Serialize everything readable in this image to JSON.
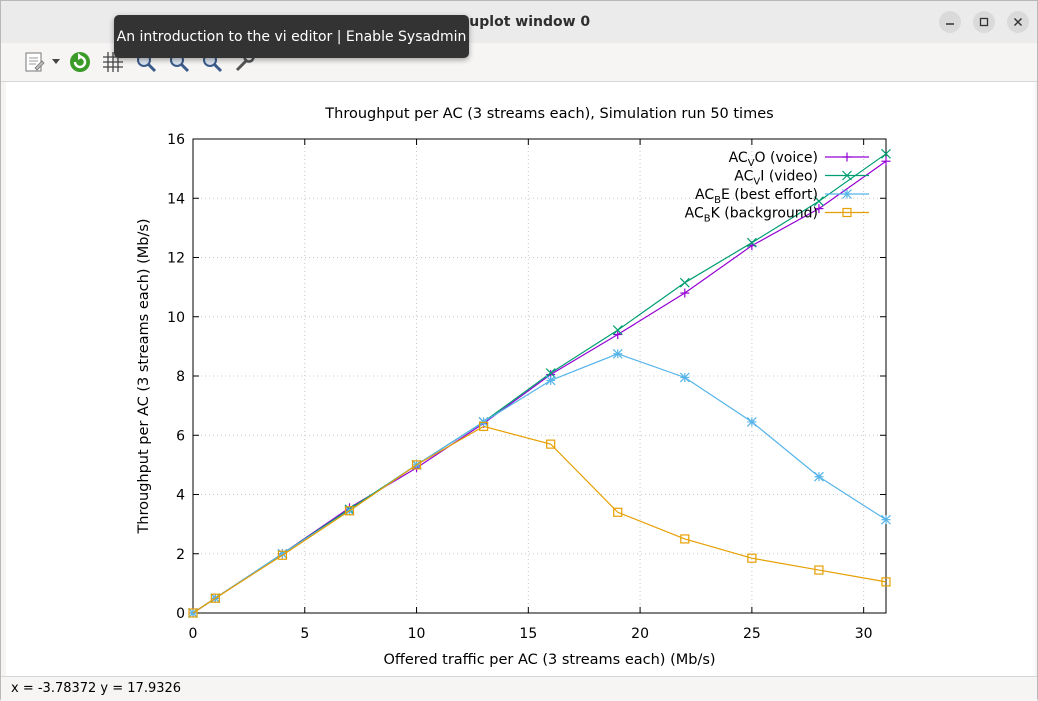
{
  "window": {
    "title": "Gnuplot window 0"
  },
  "tooltip": {
    "text": "An introduction to the vi editor | Enable Sysadmin"
  },
  "toolbar": {
    "icons": [
      "copy-icon",
      "dropdown-arrow-icon",
      "replot-icon",
      "grid-icon",
      "zoom-prev-icon",
      "zoom-next-icon",
      "autoscale-icon",
      "config-icon"
    ]
  },
  "status": {
    "text": "x = -3.78372 y = 17.9326"
  },
  "chart_data": {
    "type": "line",
    "title": "Throughput per AC (3 streams each), Simulation run 50 times",
    "xlabel": "Offered traffic per AC (3 streams each) (Mb/s)",
    "ylabel": "Throughput per AC (3 streams each) (Mb/s)",
    "xlim": [
      0,
      31
    ],
    "ylim": [
      0,
      16
    ],
    "xticks": [
      0,
      5,
      10,
      15,
      20,
      25,
      30
    ],
    "yticks": [
      0,
      2,
      4,
      6,
      8,
      10,
      12,
      14,
      16
    ],
    "grid": true,
    "legend_position": "top-right",
    "x": [
      0,
      1,
      4,
      7,
      10,
      13,
      16,
      19,
      22,
      25,
      28,
      31
    ],
    "series": [
      {
        "name": "AC_VO (voice)",
        "label_main": "AC",
        "label_sub": "V",
        "label_rest": "O (voice)",
        "color": "#9400d3",
        "marker": "plus",
        "values": [
          0,
          0.5,
          2.0,
          3.55,
          4.9,
          6.4,
          8.05,
          9.4,
          10.8,
          12.4,
          13.65,
          15.25
        ]
      },
      {
        "name": "AC_VI (video)",
        "label_main": "AC",
        "label_sub": "V",
        "label_rest": "I (video)",
        "color": "#009e73",
        "marker": "cross",
        "values": [
          0,
          0.5,
          2.0,
          3.5,
          5.0,
          6.45,
          8.1,
          9.55,
          11.15,
          12.5,
          13.9,
          15.5
        ]
      },
      {
        "name": "AC_BE (best effort)",
        "label_main": "AC",
        "label_sub": "B",
        "label_rest": "E (best effort)",
        "color": "#56b4e9",
        "marker": "star",
        "values": [
          0,
          0.5,
          2.0,
          3.45,
          5.0,
          6.45,
          7.85,
          8.75,
          7.95,
          6.45,
          4.6,
          3.15
        ]
      },
      {
        "name": "AC_BK (background)",
        "label_main": "AC",
        "label_sub": "B",
        "label_rest": "K (background)",
        "color": "#e69f00",
        "marker": "square",
        "values": [
          0,
          0.5,
          1.95,
          3.45,
          5.0,
          6.3,
          5.7,
          3.4,
          2.5,
          1.85,
          1.45,
          1.05
        ]
      }
    ]
  }
}
